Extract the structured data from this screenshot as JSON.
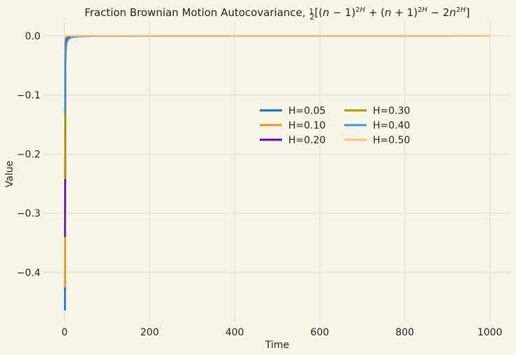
{
  "chart_data": {
    "type": "line",
    "title": "Fraction Brownian Motion Autocovariance, ½[(n − 1)^2H + (n + 1)^2H − 2n^2H]",
    "xlabel": "Time",
    "ylabel": "Value",
    "xlim": [
      -50,
      1050
    ],
    "ylim": [
      -0.483,
      0.024
    ],
    "xticks": [
      0,
      200,
      400,
      600,
      800,
      1000
    ],
    "yticks": [
      0.0,
      -0.1,
      -0.2,
      -0.3,
      -0.4
    ],
    "xtick_labels": [
      "0",
      "200",
      "400",
      "600",
      "800",
      "1000"
    ],
    "ytick_labels": [
      "0.0",
      "−0.1",
      "−0.2",
      "−0.3",
      "−0.4"
    ],
    "grid": true,
    "legend": {
      "placement": "center-right",
      "columns": 2
    },
    "x": {
      "start": 0,
      "end": 1000,
      "step": 1
    },
    "series": [
      {
        "name": "H=0.05",
        "hurst": 0.05,
        "color": "#0e6bbd"
      },
      {
        "name": "H=0.10",
        "hurst": 0.1,
        "color": "#ee9313"
      },
      {
        "name": "H=0.20",
        "hurst": 0.2,
        "color": "#5a09a3"
      },
      {
        "name": "H=0.30",
        "hurst": 0.3,
        "color": "#b19a00"
      },
      {
        "name": "H=0.40",
        "hurst": 0.4,
        "color": "#3598e7"
      },
      {
        "name": "H=0.50",
        "hurst": 0.5,
        "color": "#fcc47a"
      }
    ],
    "values_at_time_1": [
      -0.464,
      -0.426,
      -0.341,
      -0.242,
      -0.132,
      0.0
    ],
    "limit_value": 0.0
  }
}
